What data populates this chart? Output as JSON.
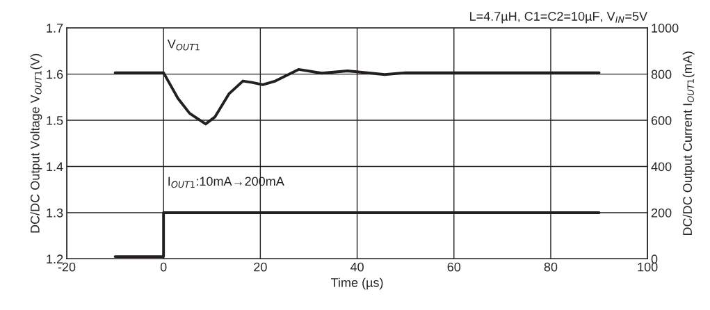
{
  "chart_data": {
    "type": "line",
    "xlabel": "Time (µs)",
    "ylabel": "DC/DC Output Voltage V$_{OUT1}$(V)",
    "y2label": "DC/DC Output Current I$_{OUT1}$(mA)",
    "annotations": [
      "L=4.7µH, C1=C2=10µF, V$_{IN}$=5V"
    ],
    "xlim": [
      -20,
      100
    ],
    "xticks": [
      -20,
      0,
      20,
      40,
      60,
      80,
      100
    ],
    "ylim": [
      1.2,
      1.7
    ],
    "yticks": [
      1.2,
      1.3,
      1.4,
      1.5,
      1.6,
      1.7
    ],
    "y2lim": [
      0,
      1000
    ],
    "y2ticks": [
      0,
      200,
      400,
      600,
      800,
      1000
    ],
    "grid": true,
    "marker": "none",
    "line_style": "solid",
    "series": [
      {
        "name": "V$_{OUT1}$",
        "color": "#231f20",
        "x": [
          -10,
          0,
          3,
          5.4,
          8.7,
          10.6,
          13.5,
          16.4,
          18.3,
          20.5,
          23.1,
          27.9,
          32.7,
          38,
          45.7,
          50,
          90
        ],
        "values": [
          1.603,
          1.603,
          1.547,
          1.515,
          1.492,
          1.507,
          1.557,
          1.585,
          1.582,
          1.577,
          1.585,
          1.61,
          1.602,
          1.607,
          1.599,
          1.603,
          1.603
        ]
      },
      {
        "name": "I$_{OUT1}$:10mA→200mA",
        "color": "#231f20",
        "axis": "y2",
        "x": [
          -10,
          0,
          0,
          90
        ],
        "values": [
          10,
          10,
          200,
          200
        ]
      }
    ]
  }
}
